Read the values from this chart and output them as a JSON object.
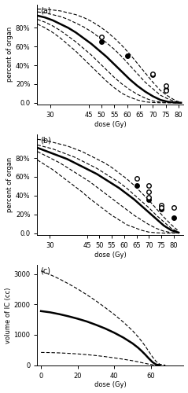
{
  "panel_a": {
    "title": "(a)",
    "ylabel": "percent of organ",
    "xlabel": "dose (Gy)",
    "xlim": [
      25,
      82
    ],
    "ylim": [
      -0.02,
      1.05
    ],
    "xticks": [
      30,
      45,
      50,
      55,
      60,
      65,
      70,
      75,
      80
    ],
    "yticks": [
      0.0,
      0.2,
      0.4,
      0.6,
      0.8
    ],
    "ytick_labels": [
      "0.0",
      "20%",
      "40%",
      "60%",
      "80%"
    ],
    "mean_x": [
      25,
      28,
      31,
      34,
      37,
      40,
      43,
      46,
      49,
      52,
      55,
      58,
      61,
      64,
      67,
      70,
      73,
      76,
      79,
      81
    ],
    "mean_y": [
      0.93,
      0.91,
      0.88,
      0.84,
      0.8,
      0.75,
      0.69,
      0.63,
      0.56,
      0.49,
      0.41,
      0.33,
      0.25,
      0.18,
      0.12,
      0.07,
      0.03,
      0.01,
      0.002,
      0.0
    ],
    "upper1_x": [
      25,
      28,
      31,
      34,
      37,
      40,
      43,
      46,
      49,
      52,
      55,
      58,
      61,
      64,
      67,
      70,
      73,
      76,
      79,
      81
    ],
    "upper1_y": [
      0.97,
      0.96,
      0.94,
      0.92,
      0.89,
      0.85,
      0.81,
      0.76,
      0.7,
      0.64,
      0.57,
      0.49,
      0.4,
      0.31,
      0.22,
      0.15,
      0.08,
      0.04,
      0.01,
      0.002
    ],
    "upper2_x": [
      25,
      28,
      31,
      34,
      37,
      40,
      43,
      46,
      49,
      52,
      55,
      58,
      61,
      64,
      67,
      70,
      73,
      76,
      79,
      81
    ],
    "upper2_y": [
      1.0,
      1.0,
      0.99,
      0.98,
      0.96,
      0.94,
      0.91,
      0.87,
      0.82,
      0.76,
      0.69,
      0.61,
      0.52,
      0.42,
      0.32,
      0.22,
      0.13,
      0.07,
      0.02,
      0.005
    ],
    "lower1_x": [
      25,
      28,
      31,
      34,
      37,
      40,
      43,
      46,
      49,
      52,
      55,
      58,
      61,
      64,
      67,
      70,
      73,
      76,
      79,
      81
    ],
    "lower1_y": [
      0.89,
      0.86,
      0.82,
      0.77,
      0.71,
      0.65,
      0.58,
      0.51,
      0.43,
      0.35,
      0.27,
      0.2,
      0.14,
      0.09,
      0.05,
      0.02,
      0.007,
      0.001,
      0.0,
      0.0
    ],
    "lower2_x": [
      25,
      28,
      31,
      34,
      37,
      40,
      43,
      46,
      49,
      52,
      55,
      58,
      61,
      64,
      67,
      70,
      73,
      76,
      79,
      81
    ],
    "lower2_y": [
      0.84,
      0.8,
      0.75,
      0.69,
      0.62,
      0.55,
      0.47,
      0.39,
      0.31,
      0.23,
      0.16,
      0.1,
      0.06,
      0.03,
      0.01,
      0.003,
      0.0,
      0.0,
      0.0,
      0.0
    ],
    "solid_circles": [
      [
        50,
        0.65
      ],
      [
        60,
        0.5
      ],
      [
        70,
        0.3
      ],
      [
        75,
        0.14
      ]
    ],
    "open_circles": [
      [
        50,
        0.7
      ],
      [
        70,
        0.31
      ],
      [
        75,
        0.18
      ],
      [
        75,
        0.13
      ]
    ]
  },
  "panel_b": {
    "title": "(b)",
    "ylabel": "percent of organ",
    "xlabel": "dose (Gy)",
    "xlim": [
      25,
      84
    ],
    "ylim": [
      -0.02,
      1.05
    ],
    "xticks": [
      30,
      45,
      50,
      55,
      60,
      65,
      70,
      75,
      80
    ],
    "yticks": [
      0.0,
      0.2,
      0.4,
      0.6,
      0.8
    ],
    "ytick_labels": [
      "0.0",
      "20%",
      "40%",
      "60%",
      "80%"
    ],
    "mean_x": [
      25,
      28,
      31,
      34,
      37,
      40,
      43,
      46,
      49,
      52,
      55,
      58,
      61,
      64,
      67,
      70,
      73,
      76,
      79,
      82
    ],
    "mean_y": [
      0.91,
      0.88,
      0.85,
      0.82,
      0.79,
      0.75,
      0.71,
      0.67,
      0.63,
      0.58,
      0.53,
      0.48,
      0.42,
      0.36,
      0.29,
      0.22,
      0.15,
      0.08,
      0.03,
      0.005
    ],
    "upper1_x": [
      25,
      28,
      31,
      34,
      37,
      40,
      43,
      46,
      49,
      52,
      55,
      58,
      61,
      64,
      67,
      70,
      73,
      76,
      79,
      82
    ],
    "upper1_y": [
      0.94,
      0.92,
      0.9,
      0.87,
      0.84,
      0.81,
      0.77,
      0.73,
      0.69,
      0.64,
      0.59,
      0.54,
      0.48,
      0.41,
      0.34,
      0.27,
      0.19,
      0.12,
      0.05,
      0.01
    ],
    "upper2_x": [
      25,
      28,
      31,
      34,
      37,
      40,
      43,
      46,
      49,
      52,
      55,
      58,
      61,
      64,
      67,
      70,
      73,
      76,
      79,
      82
    ],
    "upper2_y": [
      1.0,
      0.99,
      0.97,
      0.95,
      0.93,
      0.9,
      0.87,
      0.83,
      0.79,
      0.75,
      0.7,
      0.64,
      0.58,
      0.51,
      0.43,
      0.35,
      0.26,
      0.17,
      0.09,
      0.02
    ],
    "lower1_x": [
      25,
      28,
      31,
      34,
      37,
      40,
      43,
      46,
      49,
      52,
      55,
      58,
      61,
      64,
      67,
      70,
      73,
      76,
      79,
      82
    ],
    "lower1_y": [
      0.87,
      0.83,
      0.79,
      0.75,
      0.7,
      0.65,
      0.6,
      0.55,
      0.49,
      0.43,
      0.37,
      0.31,
      0.25,
      0.19,
      0.14,
      0.09,
      0.05,
      0.02,
      0.005,
      0.0
    ],
    "lower2_x": [
      25,
      28,
      31,
      34,
      37,
      40,
      43,
      46,
      49,
      52,
      55,
      58,
      61,
      64,
      67,
      70,
      73,
      76,
      79,
      82
    ],
    "lower2_y": [
      0.78,
      0.73,
      0.68,
      0.62,
      0.56,
      0.5,
      0.44,
      0.37,
      0.31,
      0.25,
      0.19,
      0.14,
      0.09,
      0.06,
      0.03,
      0.01,
      0.003,
      0.0,
      0.0,
      0.0
    ],
    "solid_circles": [
      [
        65,
        0.51
      ],
      [
        70,
        0.36
      ],
      [
        75,
        0.26
      ],
      [
        80,
        0.16
      ]
    ],
    "open_circles": [
      [
        65,
        0.58
      ],
      [
        70,
        0.51
      ],
      [
        70,
        0.44
      ],
      [
        70,
        0.38
      ],
      [
        75,
        0.3
      ],
      [
        75,
        0.27
      ],
      [
        80,
        0.27
      ]
    ]
  },
  "panel_c": {
    "title": "(c)",
    "ylabel": "volume of IC (cc)",
    "xlabel": "dose (Gy)",
    "xlim": [
      -2,
      78
    ],
    "ylim": [
      0,
      3300
    ],
    "xticks": [
      0,
      20,
      40,
      60
    ],
    "yticks": [
      0,
      1000,
      2000,
      3000
    ],
    "mean_x": [
      0,
      5,
      10,
      15,
      20,
      25,
      30,
      35,
      40,
      45,
      50,
      53,
      55,
      57,
      59,
      61,
      63,
      65
    ],
    "mean_y": [
      1780,
      1740,
      1680,
      1610,
      1530,
      1440,
      1330,
      1210,
      1070,
      910,
      720,
      580,
      470,
      350,
      220,
      100,
      20,
      2
    ],
    "upper_x": [
      0,
      5,
      10,
      15,
      20,
      25,
      30,
      35,
      40,
      45,
      50,
      53,
      55,
      57,
      59,
      61,
      63,
      65,
      68
    ],
    "upper_y": [
      3100,
      2980,
      2840,
      2680,
      2510,
      2320,
      2120,
      1900,
      1670,
      1420,
      1140,
      940,
      790,
      630,
      450,
      270,
      120,
      30,
      2
    ],
    "lower_x": [
      0,
      5,
      10,
      15,
      20,
      25,
      30,
      35,
      40,
      45,
      50,
      53,
      55,
      57,
      59,
      61,
      63,
      65
    ],
    "lower_y": [
      420,
      415,
      405,
      390,
      372,
      348,
      318,
      283,
      242,
      197,
      148,
      112,
      85,
      60,
      35,
      14,
      3,
      0
    ]
  }
}
